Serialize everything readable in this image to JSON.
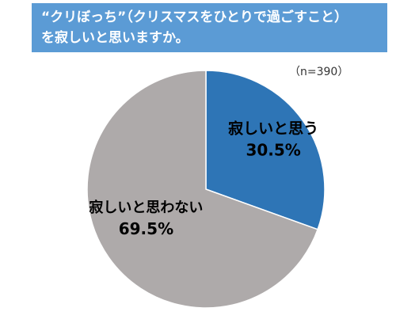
{
  "title": {
    "line1": "“クリぼっち”（クリスマスをひとりで過ごすこと）",
    "line2": "を寂しいと思いますか。"
  },
  "sample_size": "（n=390）",
  "colors": {
    "title_bg": "#5b9bd5",
    "title_text": "#ffffff",
    "lonely": "#2e75b6",
    "not_lonely": "#aeaaaa"
  },
  "chart_data": {
    "type": "pie",
    "title": "“クリぼっち”（クリスマスをひとりで過ごすこと）を寂しいと思いますか。",
    "subtitle": "（n=390）",
    "categories": [
      "寂しいと思う",
      "寂しいと思わない"
    ],
    "values": [
      30.5,
      69.5
    ],
    "value_labels": [
      "30.5%",
      "69.5%"
    ],
    "colors": [
      "#2e75b6",
      "#aeaaaa"
    ],
    "legend": "none"
  }
}
